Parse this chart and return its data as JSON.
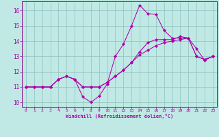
{
  "xlabel": "Windchill (Refroidissement éolien,°C)",
  "background_color": "#c0e8e4",
  "grid_color": "#98c8c4",
  "line_color": "#aa00aa",
  "spine_color": "#880088",
  "xlim_min": -0.5,
  "xlim_max": 23.5,
  "ylim_min": 9.7,
  "ylim_max": 16.6,
  "yticks": [
    10,
    11,
    12,
    13,
    14,
    15,
    16
  ],
  "xticks": [
    0,
    1,
    2,
    3,
    4,
    5,
    6,
    7,
    8,
    9,
    10,
    11,
    12,
    13,
    14,
    15,
    16,
    17,
    18,
    19,
    20,
    21,
    22,
    23
  ],
  "series1_x": [
    0,
    1,
    2,
    3,
    4,
    5,
    6,
    7,
    8,
    9,
    10,
    11,
    12,
    13,
    14,
    15,
    16,
    17,
    18,
    19,
    20,
    21,
    22,
    23
  ],
  "series1_y": [
    11.0,
    11.0,
    11.0,
    11.0,
    11.5,
    11.7,
    11.5,
    10.35,
    10.0,
    10.4,
    11.2,
    13.0,
    13.8,
    15.0,
    16.35,
    15.8,
    15.75,
    14.7,
    14.2,
    14.2,
    14.2,
    13.5,
    12.75,
    13.0
  ],
  "series2_x": [
    0,
    1,
    2,
    3,
    4,
    5,
    6,
    7,
    8,
    9,
    10,
    11,
    12,
    13,
    14,
    15,
    16,
    17,
    18,
    19,
    20,
    21,
    22,
    23
  ],
  "series2_y": [
    11.0,
    11.0,
    11.0,
    11.0,
    11.5,
    11.7,
    11.5,
    11.0,
    11.0,
    11.0,
    11.3,
    11.7,
    12.1,
    12.6,
    13.1,
    13.4,
    13.7,
    13.9,
    14.0,
    14.1,
    14.2,
    13.0,
    12.8,
    13.0
  ],
  "series3_x": [
    0,
    1,
    2,
    3,
    4,
    5,
    6,
    7,
    8,
    9,
    10,
    11,
    12,
    13,
    14,
    15,
    16,
    17,
    18,
    19,
    20,
    21,
    22,
    23
  ],
  "series3_y": [
    11.0,
    11.0,
    11.0,
    11.0,
    11.5,
    11.7,
    11.5,
    11.0,
    11.0,
    11.0,
    11.3,
    11.7,
    12.1,
    12.6,
    13.3,
    13.9,
    14.1,
    14.1,
    14.1,
    14.3,
    14.2,
    13.0,
    12.8,
    13.0
  ]
}
